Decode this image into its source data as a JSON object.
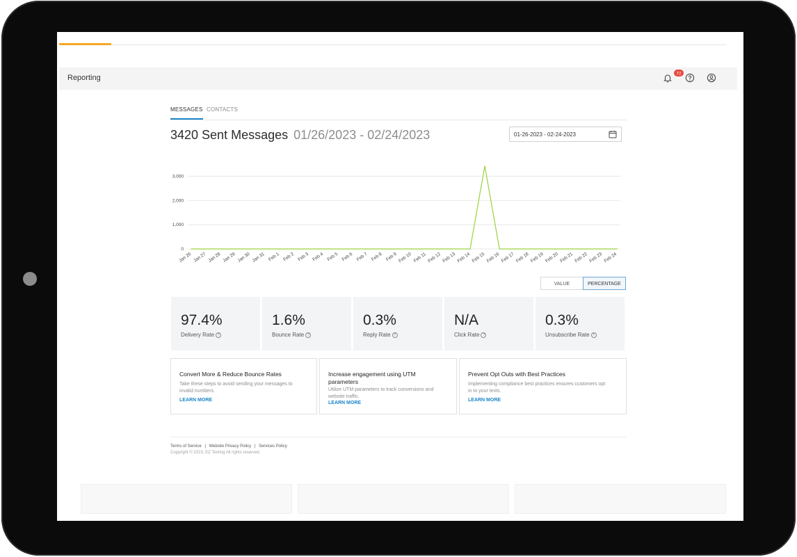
{
  "header": {
    "title": "Reporting",
    "notification_count": "72"
  },
  "tabs": [
    {
      "label": "MESSAGES"
    },
    {
      "label": "CONTACTS"
    }
  ],
  "summary": {
    "headline": "3420 Sent Messages",
    "range": "01/26/2023 - 02/24/2023"
  },
  "date_picker": {
    "value": "01-26-2023 - 02-24-2023"
  },
  "chart_data": {
    "type": "line",
    "x": [
      "Jan 26",
      "Jan 27",
      "Jan 28",
      "Jan 29",
      "Jan 30",
      "Jan 31",
      "Feb 1",
      "Feb 2",
      "Feb 3",
      "Feb 4",
      "Feb 5",
      "Feb 6",
      "Feb 7",
      "Feb 8",
      "Feb 9",
      "Feb 10",
      "Feb 11",
      "Feb 12",
      "Feb 13",
      "Feb 14",
      "Feb 15",
      "Feb 16",
      "Feb 17",
      "Feb 18",
      "Feb 19",
      "Feb 20",
      "Feb 21",
      "Feb 22",
      "Feb 23",
      "Feb 24"
    ],
    "series": [
      {
        "values": [
          0,
          0,
          0,
          0,
          0,
          0,
          0,
          0,
          0,
          0,
          0,
          0,
          0,
          0,
          0,
          0,
          0,
          0,
          0,
          0,
          3420,
          0,
          0,
          0,
          0,
          0,
          0,
          0,
          0,
          0
        ]
      }
    ],
    "y_ticks": [
      0,
      1000,
      2000,
      3000
    ],
    "y_tick_labels": [
      "0",
      "1,000",
      "2,000",
      "3,000"
    ],
    "ylim": [
      0,
      3500
    ],
    "color": "#9bd23c",
    "grid": true
  },
  "view_toggle": {
    "value_label": "VALUE",
    "percentage_label": "PERCENTAGE",
    "selected": "PERCENTAGE"
  },
  "stats": [
    {
      "value": "97.4%",
      "label": "Delivery Rate"
    },
    {
      "value": "1.6%",
      "label": "Bounce Rate"
    },
    {
      "value": "0.3%",
      "label": "Reply Rate"
    },
    {
      "value": "N/A",
      "label": "Click Rate"
    },
    {
      "value": "0.3%",
      "label": "Unsubscribe Rate"
    }
  ],
  "cards": [
    {
      "title": "Convert More & Reduce Bounce Rates",
      "desc": [
        "Take these steps to avoid sending your messages to",
        "invalid numbers."
      ],
      "link": "LEARN MORE"
    },
    {
      "title": [
        "Increase engagement using UTM",
        "parameters"
      ],
      "desc": [
        "Utilize UTM parameters to track conversions and",
        "website traffic."
      ],
      "link": "LEARN MORE"
    },
    {
      "title": "Prevent Opt Outs with Best Practices",
      "desc": [
        "Implementing compliance best practices ensures customers opt",
        "in to your texts."
      ],
      "link": "LEARN MORE"
    }
  ],
  "footer": {
    "links": [
      "Terms of Service",
      "Website Privacy Policy",
      "Services Policy"
    ],
    "separator": "|",
    "copyright": "Copyright © 2023, EZ Texting All rights reserved."
  },
  "colors": {
    "accent": "#1b86c9",
    "top_accent": "#f5a623",
    "line": "#9bd23c",
    "badge": "#e8473c"
  },
  "icons": [
    "bell-icon",
    "help-icon",
    "user-icon",
    "calendar-icon",
    "question-icon"
  ]
}
